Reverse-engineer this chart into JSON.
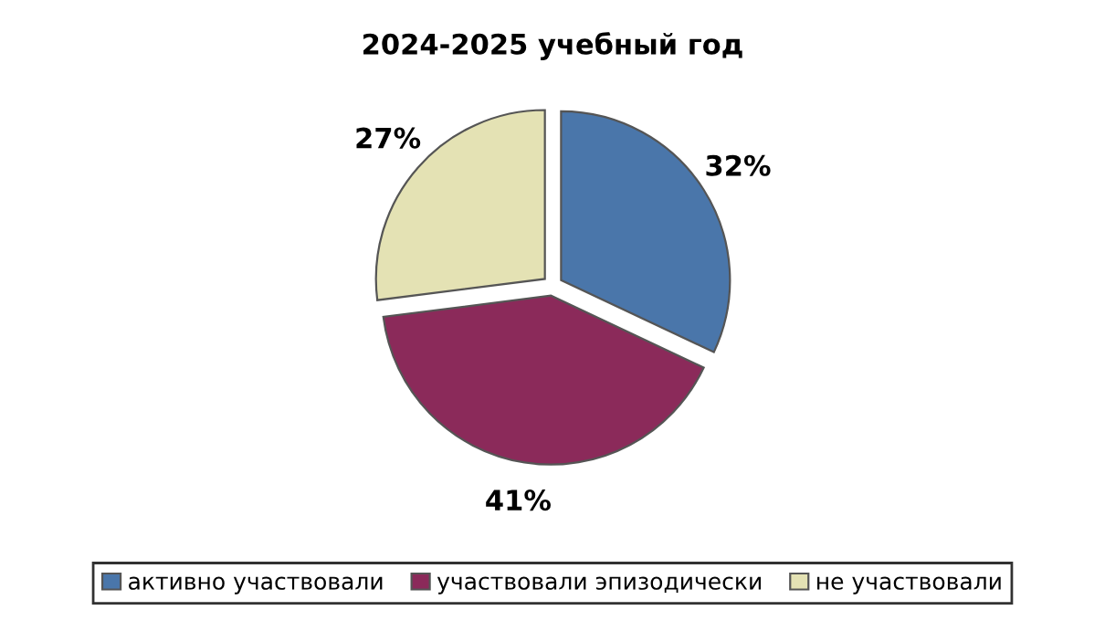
{
  "chart_data": {
    "type": "pie",
    "title": "2024-2025 учебный год",
    "categories": [
      "активно участвовали",
      "участвовали эпизодически",
      "не участвовали"
    ],
    "values": [
      32,
      41,
      27
    ],
    "value_labels": [
      "32%",
      "41%",
      "27%"
    ],
    "colors": [
      "#4a76aa",
      "#8b2a5a",
      "#e4e2b4"
    ],
    "legend": "bottom"
  }
}
